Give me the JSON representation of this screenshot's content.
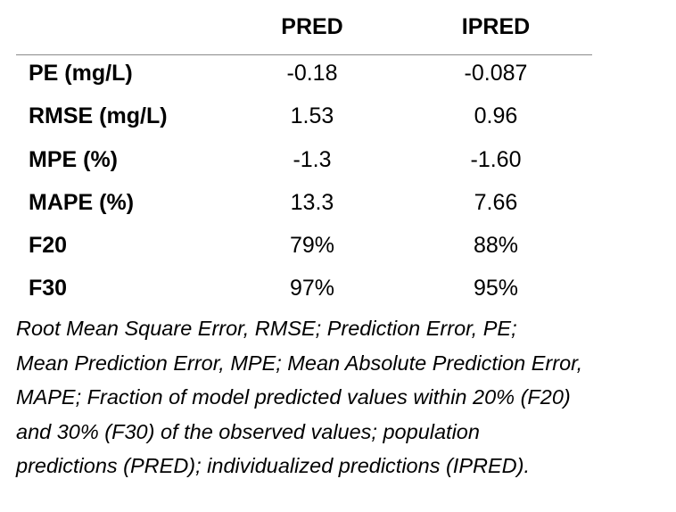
{
  "table": {
    "columns": [
      "PRED",
      "IPRED"
    ],
    "rows": [
      {
        "label": "PE (mg/L)",
        "pred": "-0.18",
        "ipred": "-0.087"
      },
      {
        "label": "RMSE (mg/L)",
        "pred": "1.53",
        "ipred": "0.96"
      },
      {
        "label": "MPE (%)",
        "pred": "-1.3",
        "ipred": "-1.60"
      },
      {
        "label": "MAPE (%)",
        "pred": "13.3",
        "ipred": "7.66"
      },
      {
        "label": "F20",
        "pred": "79%",
        "ipred": "88%"
      },
      {
        "label": "F30",
        "pred": "97%",
        "ipred": "95%"
      }
    ]
  },
  "caption": {
    "lines": [
      "Root Mean Square Error, RMSE; Prediction Error, PE;",
      "Mean Prediction Error, MPE; Mean Absolute Prediction Error,",
      "MAPE; Fraction of model predicted values within 20% (F20)",
      "and 30% (F30) of the observed values; population",
      "predictions (PRED); individualized predictions (IPRED)."
    ]
  }
}
